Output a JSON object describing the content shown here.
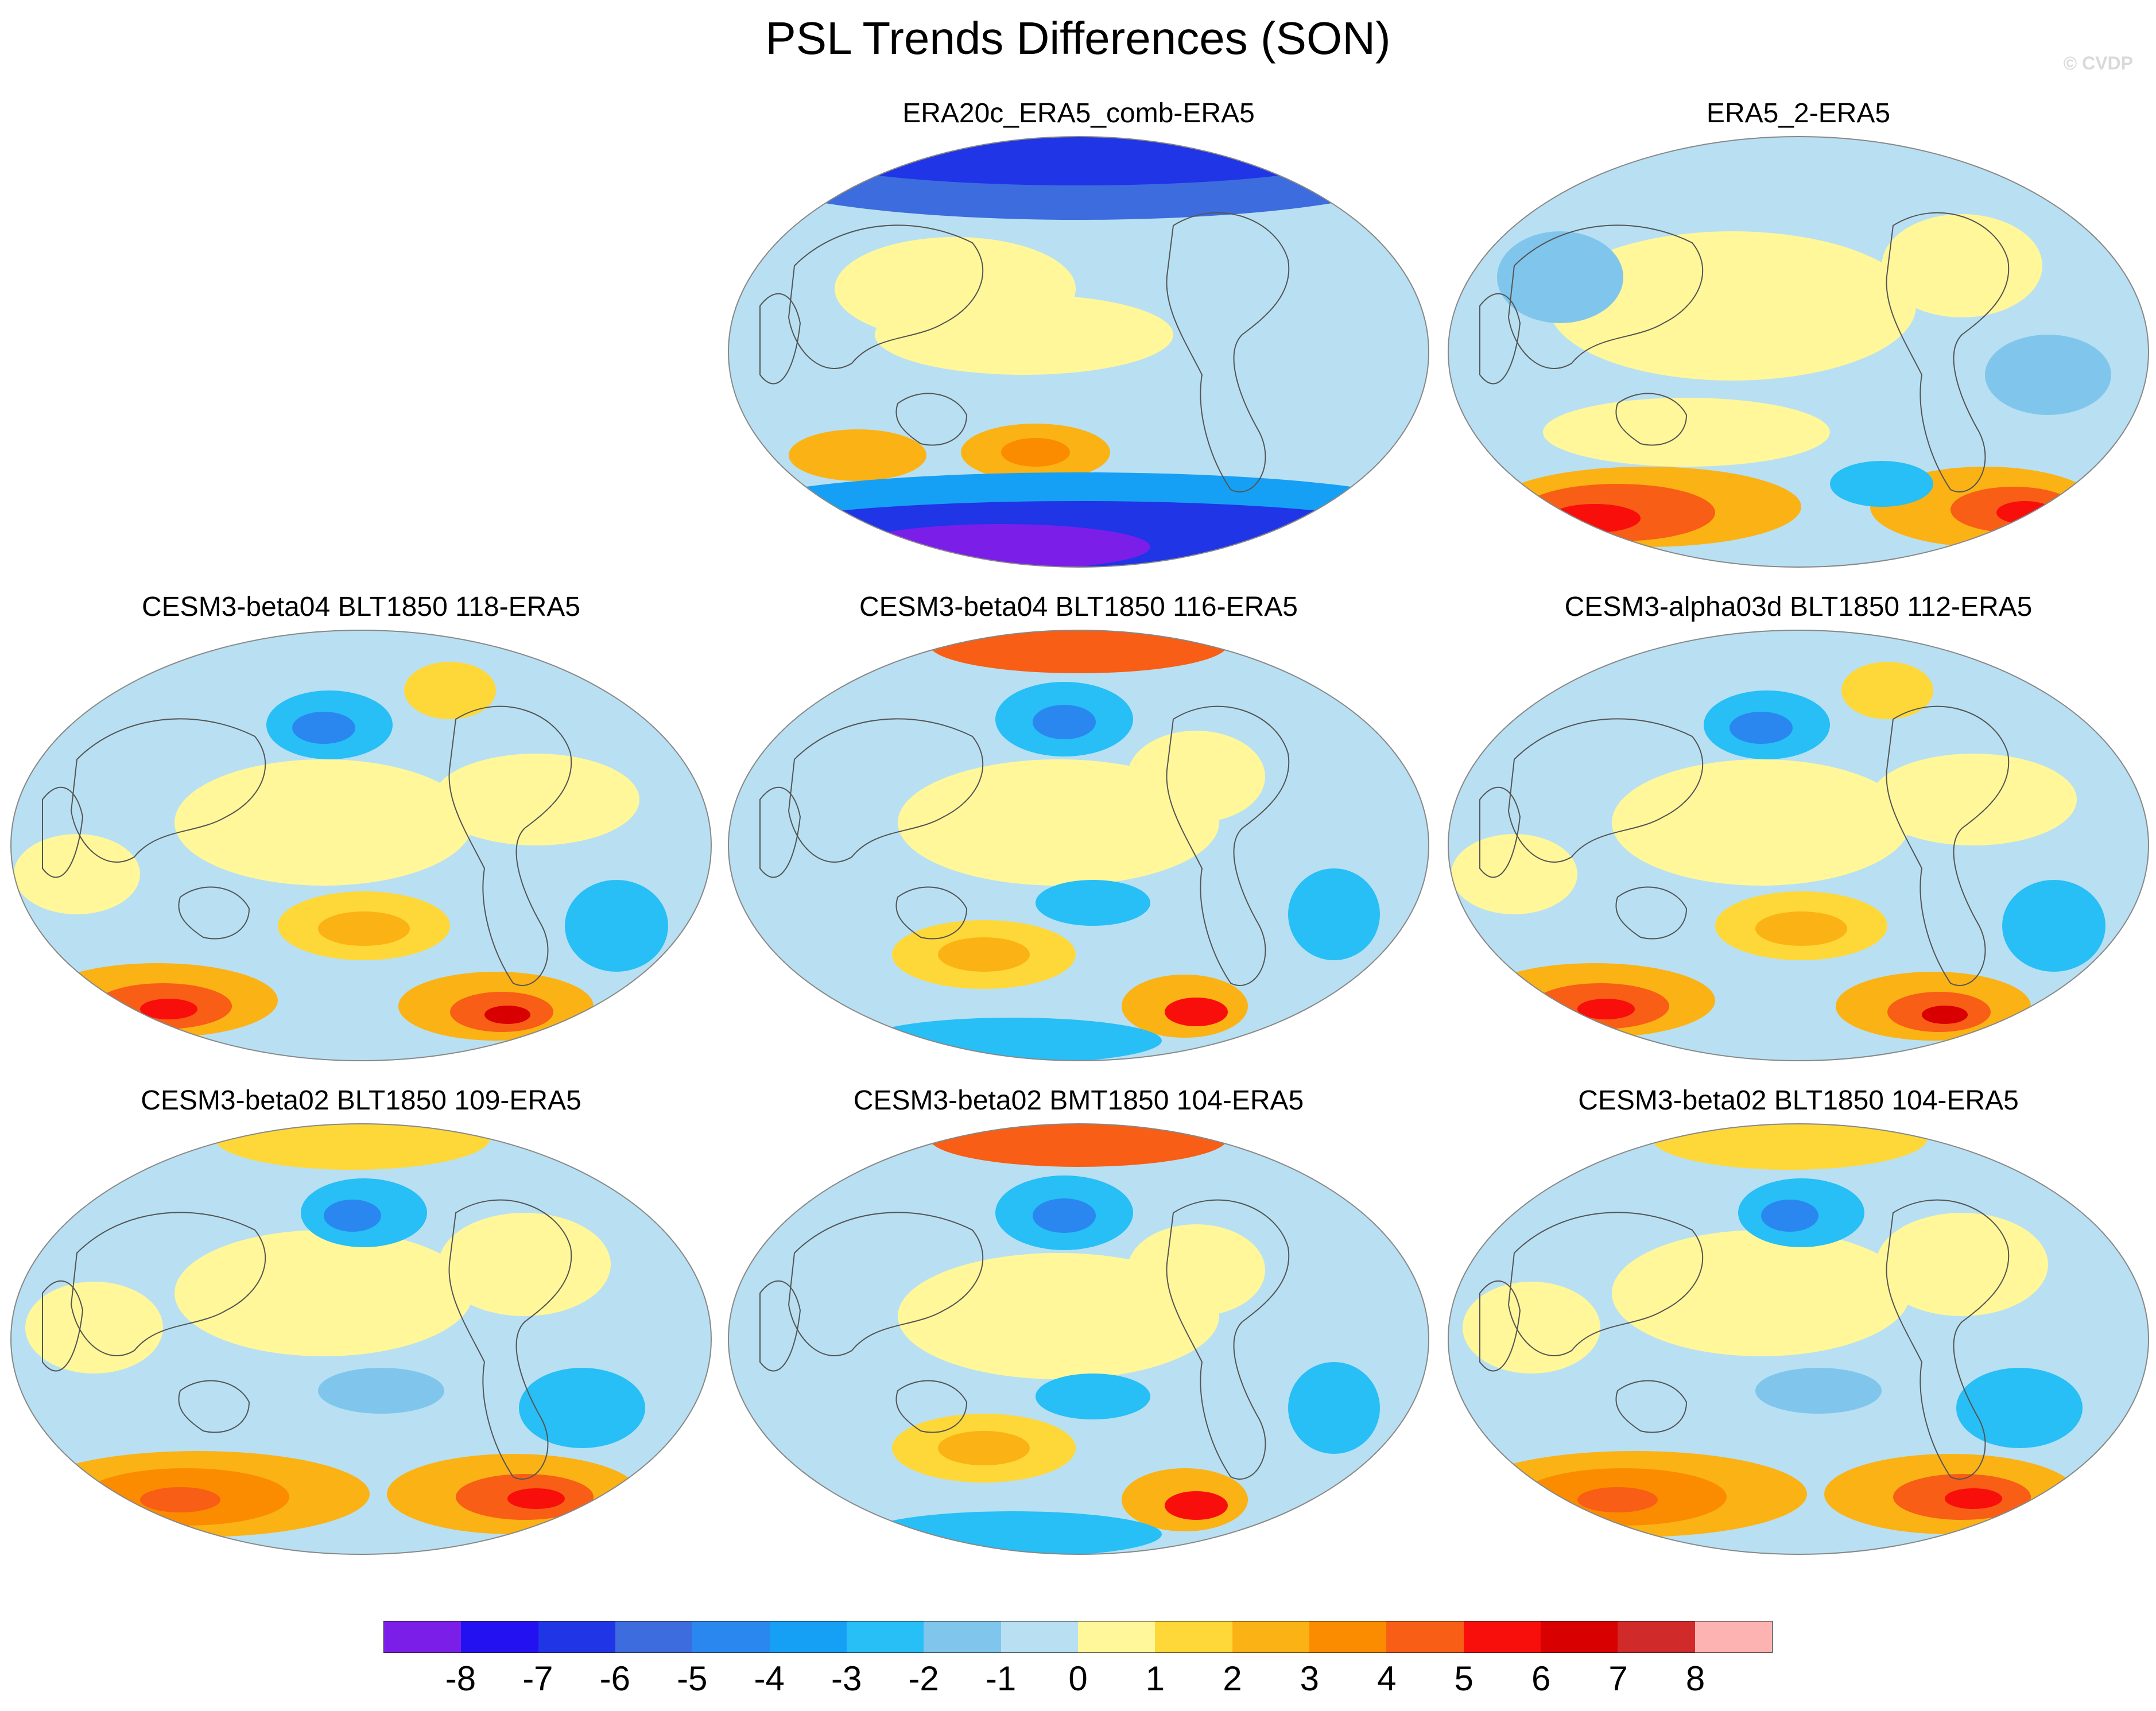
{
  "title": "PSL Trends Differences (SON)",
  "watermark": "© CVDP",
  "panels": [
    {
      "name": "ERA20c_ERA5_comb-ERA5",
      "scheme": "era20c"
    },
    {
      "name": "ERA5_2-ERA5",
      "scheme": "south-warm"
    },
    {
      "name": "CESM3-beta04 BLT1850 118-ERA5",
      "scheme": "model-a"
    },
    {
      "name": "CESM3-beta04 BLT1850 116-ERA5",
      "scheme": "model-b"
    },
    {
      "name": "CESM3-alpha03d BLT1850 112-ERA5",
      "scheme": "model-a"
    },
    {
      "name": "CESM3-beta02 BLT1850 109-ERA5",
      "scheme": "model-c"
    },
    {
      "name": "CESM3-beta02 BMT1850 104-ERA5",
      "scheme": "model-b"
    },
    {
      "name": "CESM3-beta02 BLT1850 104-ERA5",
      "scheme": "model-c"
    }
  ],
  "colorbar": {
    "colors": [
      "#7b1fe8",
      "#2311f2",
      "#1f35e6",
      "#3d6cde",
      "#2a87f0",
      "#16a0f5",
      "#27bff5",
      "#80c6ec",
      "#b8e0f2",
      "#fff79a",
      "#fed838",
      "#fbb215",
      "#fb8c00",
      "#f85e15",
      "#f80e0a",
      "#d80000",
      "#d12a2a",
      "#feb3b3"
    ],
    "ticks": [
      "-8",
      "-7",
      "-6",
      "-5",
      "-4",
      "-3",
      "-2",
      "-1",
      "0",
      "1",
      "2",
      "3",
      "4",
      "5",
      "6",
      "7",
      "8"
    ]
  }
}
